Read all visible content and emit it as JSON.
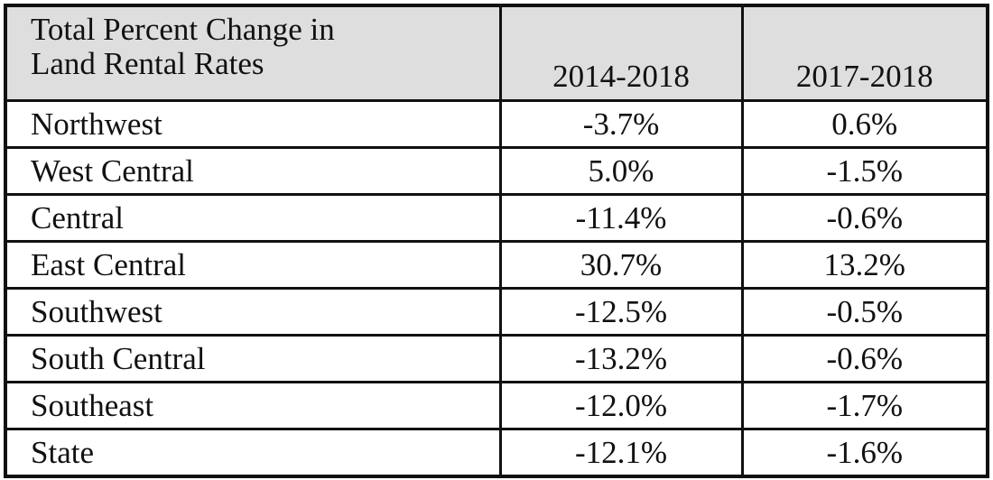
{
  "table": {
    "header": {
      "title_lines": [
        "Total Percent Change in",
        "Land Rental Rates"
      ],
      "columns": [
        "2014-2018",
        "2017-2018"
      ]
    },
    "rows": [
      [
        "Northwest",
        "-3.7%",
        "0.6%"
      ],
      [
        "West Central",
        "5.0%",
        "-1.5%"
      ],
      [
        "Central",
        "-11.4%",
        "-0.6%"
      ],
      [
        "East Central",
        "30.7%",
        "13.2%"
      ],
      [
        "Southwest",
        "-12.5%",
        "-0.5%"
      ],
      [
        "South Central",
        "-13.2%",
        "-0.6%"
      ],
      [
        "Southeast",
        "-12.0%",
        "-1.7%"
      ],
      [
        "State",
        "-12.1%",
        "-1.6%"
      ]
    ]
  }
}
